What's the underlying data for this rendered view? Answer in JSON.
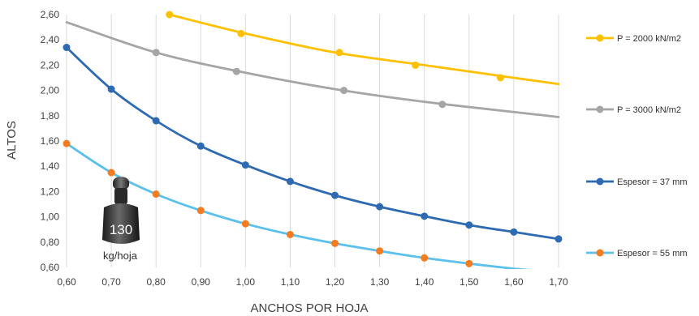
{
  "chart_data": {
    "type": "line",
    "xlabel": "ANCHOS POR HOJA",
    "ylabel": "ALTOS",
    "xlim": [
      0.6,
      1.7
    ],
    "ylim": [
      0.6,
      2.6
    ],
    "x_ticks": [
      "0,60",
      "0,70",
      "0,80",
      "0,90",
      "1,00",
      "1,10",
      "1,20",
      "1,30",
      "1,40",
      "1,50",
      "1,60",
      "1,70"
    ],
    "y_ticks": [
      "0,60",
      "0,80",
      "1,00",
      "1,20",
      "1,40",
      "1,60",
      "1,80",
      "2,00",
      "2,20",
      "2,40",
      "2,60"
    ],
    "grid": "vertical",
    "legend_position": "right",
    "series": [
      {
        "name": "P = 2000 kN/m2",
        "color": "#FFC000",
        "line": [
          [
            0.83,
            2.6
          ],
          [
            1.0,
            2.45
          ],
          [
            1.2,
            2.3
          ],
          [
            1.4,
            2.2
          ],
          [
            1.6,
            2.1
          ],
          [
            1.7,
            2.05
          ]
        ],
        "markers": [
          [
            0.83,
            2.6
          ],
          [
            0.99,
            2.45
          ],
          [
            1.21,
            2.3
          ],
          [
            1.38,
            2.2
          ],
          [
            1.57,
            2.1
          ]
        ]
      },
      {
        "name": "P = 3000 kN/m2",
        "color": "#A5A5A5",
        "line": [
          [
            0.6,
            2.54
          ],
          [
            0.8,
            2.3
          ],
          [
            1.0,
            2.14
          ],
          [
            1.2,
            2.01
          ],
          [
            1.4,
            1.91
          ],
          [
            1.7,
            1.79
          ]
        ],
        "markers": [
          [
            0.8,
            2.3
          ],
          [
            0.98,
            2.15
          ],
          [
            1.22,
            2.0
          ],
          [
            1.44,
            1.89
          ]
        ]
      },
      {
        "name": "Espesor = 37 mm",
        "color": "#2E6AB1",
        "line": [
          [
            0.6,
            2.34
          ],
          [
            0.7,
            2.01
          ],
          [
            0.8,
            1.76
          ],
          [
            0.9,
            1.56
          ],
          [
            1.0,
            1.41
          ],
          [
            1.1,
            1.28
          ],
          [
            1.2,
            1.17
          ],
          [
            1.3,
            1.08
          ],
          [
            1.4,
            1.005
          ],
          [
            1.5,
            0.935
          ],
          [
            1.6,
            0.88
          ],
          [
            1.7,
            0.825
          ]
        ],
        "markers": [
          [
            0.6,
            2.34
          ],
          [
            0.7,
            2.01
          ],
          [
            0.8,
            1.76
          ],
          [
            0.9,
            1.56
          ],
          [
            1.0,
            1.41
          ],
          [
            1.1,
            1.28
          ],
          [
            1.2,
            1.17
          ],
          [
            1.3,
            1.08
          ],
          [
            1.4,
            1.005
          ],
          [
            1.5,
            0.935
          ],
          [
            1.6,
            0.88
          ],
          [
            1.7,
            0.825
          ]
        ]
      },
      {
        "name": "Espesor = 55 mm",
        "color": "#5BC0EB",
        "marker_color": "#F47B20",
        "line": [
          [
            0.6,
            1.58
          ],
          [
            0.7,
            1.35
          ],
          [
            0.8,
            1.18
          ],
          [
            0.9,
            1.05
          ],
          [
            1.0,
            0.945
          ],
          [
            1.1,
            0.86
          ],
          [
            1.2,
            0.79
          ],
          [
            1.3,
            0.73
          ],
          [
            1.4,
            0.675
          ],
          [
            1.5,
            0.63
          ],
          [
            1.6,
            0.59
          ],
          [
            1.65,
            0.575
          ]
        ],
        "markers": [
          [
            0.6,
            1.58
          ],
          [
            0.7,
            1.35
          ],
          [
            0.8,
            1.18
          ],
          [
            0.9,
            1.05
          ],
          [
            1.0,
            0.945
          ],
          [
            1.1,
            0.86
          ],
          [
            1.2,
            0.79
          ],
          [
            1.3,
            0.73
          ],
          [
            1.4,
            0.675
          ],
          [
            1.5,
            0.63
          ]
        ]
      }
    ]
  },
  "weight_badge": {
    "value": "130",
    "unit": "kg/hoja"
  }
}
